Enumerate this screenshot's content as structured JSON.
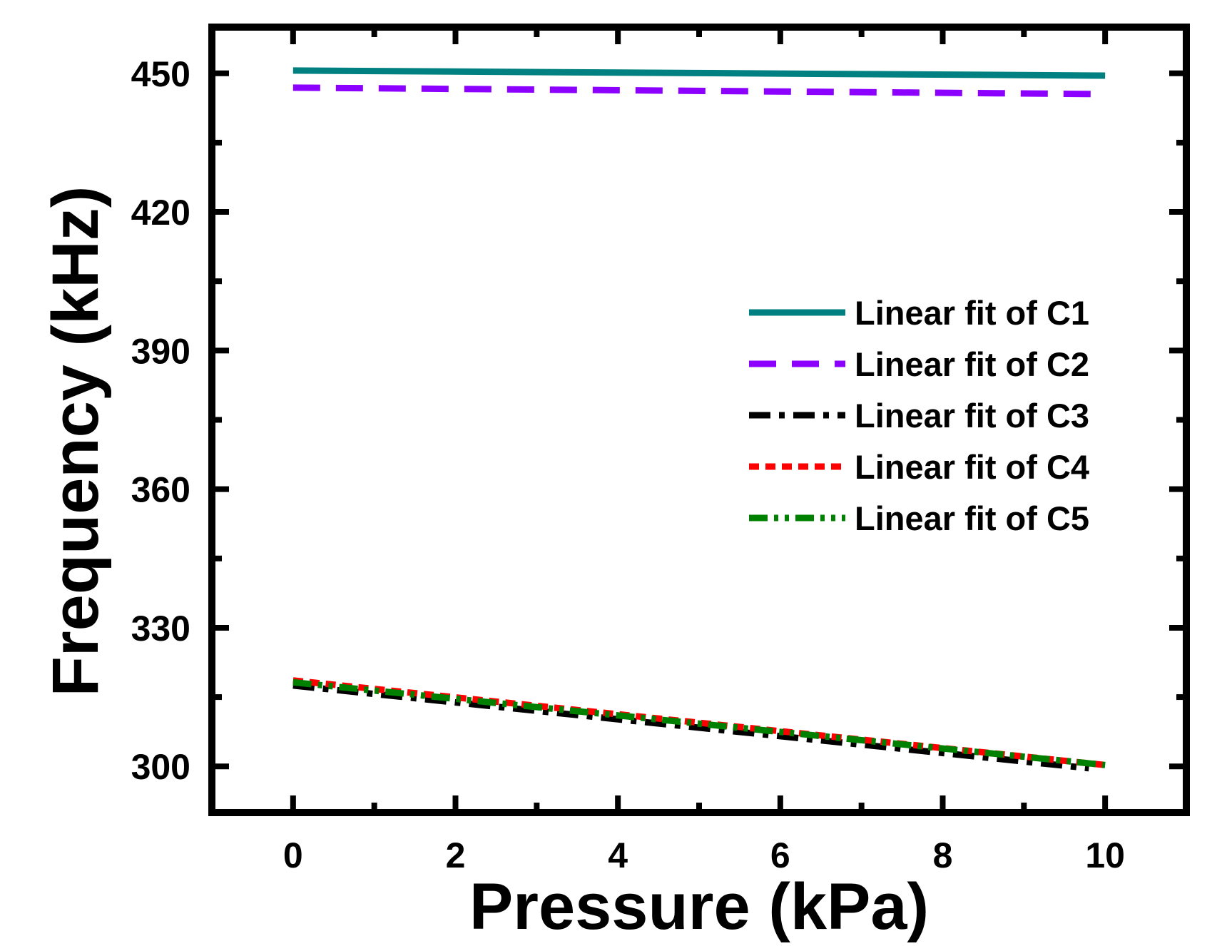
{
  "chart_data": {
    "type": "line",
    "title": "",
    "xlabel": "Pressure (kPa)",
    "ylabel": "Frequency (kHz)",
    "xlim": [
      -1.0,
      11.0
    ],
    "ylim": [
      290,
      460
    ],
    "x_ticks": [
      0,
      2,
      4,
      6,
      8,
      10
    ],
    "x_tick_labels": [
      "0",
      "2",
      "4",
      "6",
      "8",
      "10"
    ],
    "y_ticks": [
      300,
      330,
      360,
      390,
      420,
      450
    ],
    "y_tick_labels": [
      "300",
      "330",
      "360",
      "390",
      "420",
      "450"
    ],
    "grid": false,
    "legend_position": "center-right",
    "series": [
      {
        "name": "Linear fit of C1",
        "x": [
          0,
          10
        ],
        "y": [
          450.6,
          449.5
        ],
        "color": "#008080",
        "style": "solid"
      },
      {
        "name": "Linear fit of C2",
        "x": [
          0,
          10
        ],
        "y": [
          446.9,
          445.5
        ],
        "color": "#8b00ff",
        "style": "dash"
      },
      {
        "name": "Linear fit of C3",
        "x": [
          0,
          9.8
        ],
        "y": [
          317.5,
          299.6
        ],
        "color": "#000000",
        "style": "dashdot"
      },
      {
        "name": "Linear fit of C4",
        "x": [
          0,
          10
        ],
        "y": [
          318.6,
          300.3
        ],
        "color": "#ff0000",
        "style": "shortdash"
      },
      {
        "name": "Linear fit of C5",
        "x": [
          0,
          10
        ],
        "y": [
          318.2,
          300.3
        ],
        "color": "#008000",
        "style": "dashdotdot"
      }
    ]
  }
}
